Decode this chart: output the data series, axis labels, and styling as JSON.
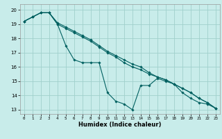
{
  "xlabel": "Humidex (Indice chaleur)",
  "bg_color": "#c8ecea",
  "grid_color": "#a0d0cc",
  "line_color": "#006060",
  "xlim": [
    -0.5,
    23.5
  ],
  "ylim": [
    12.7,
    20.4
  ],
  "yticks": [
    13,
    14,
    15,
    16,
    17,
    18,
    19,
    20
  ],
  "xticks": [
    0,
    1,
    2,
    3,
    4,
    5,
    6,
    7,
    8,
    9,
    10,
    11,
    12,
    13,
    14,
    15,
    16,
    17,
    18,
    19,
    20,
    21,
    22,
    23
  ],
  "series1_x": [
    0,
    1,
    2,
    3,
    4,
    5,
    6,
    7,
    8,
    9,
    10,
    11,
    12,
    13,
    14,
    15,
    16,
    17,
    18,
    19,
    20,
    21,
    22,
    23
  ],
  "series1_y": [
    19.2,
    19.5,
    19.8,
    19.8,
    19.0,
    17.5,
    16.5,
    16.3,
    16.3,
    16.3,
    14.2,
    13.6,
    13.4,
    13.0,
    14.7,
    14.7,
    15.2,
    15.0,
    14.8,
    14.2,
    13.8,
    13.5,
    13.4,
    13.1
  ],
  "series2_x": [
    0,
    1,
    2,
    3,
    4,
    5,
    6,
    7,
    8,
    9,
    10,
    11,
    12,
    13,
    14,
    15,
    16,
    17,
    18,
    19,
    20,
    21,
    22,
    23
  ],
  "series2_y": [
    19.2,
    19.5,
    19.8,
    19.8,
    19.0,
    18.7,
    18.4,
    18.1,
    17.8,
    17.4,
    17.0,
    16.7,
    16.3,
    16.0,
    15.8,
    15.5,
    15.3,
    15.1,
    14.8,
    14.5,
    14.2,
    13.8,
    13.5,
    13.1
  ],
  "series3_x": [
    0,
    1,
    2,
    3,
    4,
    5,
    6,
    7,
    8,
    9,
    10,
    11,
    12,
    13,
    14,
    15,
    16,
    17,
    18,
    19,
    20,
    21,
    22,
    23
  ],
  "series3_y": [
    19.2,
    19.5,
    19.8,
    19.8,
    19.1,
    18.8,
    18.5,
    18.2,
    17.9,
    17.5,
    17.1,
    16.8,
    16.5,
    16.2,
    16.0,
    15.6,
    15.3,
    15.1,
    14.8,
    14.5,
    14.2,
    13.8,
    13.5,
    13.1
  ]
}
